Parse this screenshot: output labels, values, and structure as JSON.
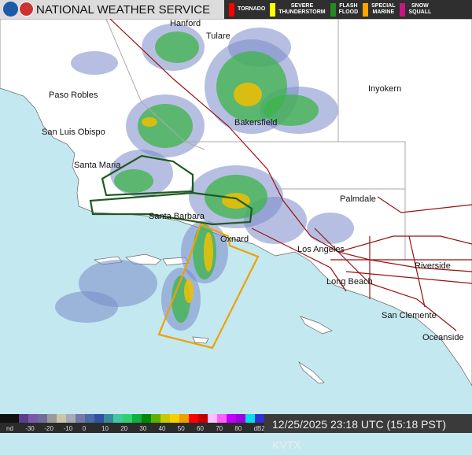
{
  "header": {
    "title": "NATIONAL WEATHER SERVICE",
    "logos": [
      "noaa-logo",
      "nws-logo"
    ]
  },
  "warnings_legend": [
    {
      "label": "TORNADO",
      "color": "#ff0000"
    },
    {
      "label": "SEVERE\nTHUNDERSTORM",
      "color": "#ffff00"
    },
    {
      "label": "FLASH\nFLOOD",
      "color": "#228b22"
    },
    {
      "label": "SPECIAL\nMARINE",
      "color": "#ffa500"
    },
    {
      "label": "SNOW\nSQUALL",
      "color": "#c71585"
    }
  ],
  "cities": [
    {
      "name": "Hanford"
    },
    {
      "name": "Tulare"
    },
    {
      "name": "Paso Robles"
    },
    {
      "name": "Inyokern"
    },
    {
      "name": "Bakersfield"
    },
    {
      "name": "San Luis Obispo"
    },
    {
      "name": "Santa Maria"
    },
    {
      "name": "Palmdale"
    },
    {
      "name": "Santa Barbara"
    },
    {
      "name": "Oxnard"
    },
    {
      "name": "Los Angeles"
    },
    {
      "name": "Riverside"
    },
    {
      "name": "Long Beach"
    },
    {
      "name": "San Clemente"
    },
    {
      "name": "Oceanside"
    }
  ],
  "scale": {
    "ticks": [
      "nd",
      "-30",
      "-20",
      "-10",
      "0",
      "10",
      "20",
      "30",
      "40",
      "50",
      "60",
      "70",
      "80",
      "dBZ"
    ],
    "colors": [
      "#111",
      "#111",
      "#5a3f8a",
      "#7a5aa8",
      "#6e6e98",
      "#9a9a9a",
      "#c8c8a8",
      "#a8a8b8",
      "#7878a8",
      "#4a6aa8",
      "#3050a0",
      "#3a8a9a",
      "#40c8a0",
      "#30d070",
      "#10b040",
      "#008800",
      "#60b000",
      "#c8c800",
      "#f8d000",
      "#f0a000",
      "#ff0000",
      "#c00000",
      "#ffc0ff",
      "#ff60ff",
      "#c000ff",
      "#a000e0",
      "#00e0e8",
      "#3030d0"
    ]
  },
  "timestamp": "12/25/2025 23:18 UTC (15:18 PST)  KVTX"
}
